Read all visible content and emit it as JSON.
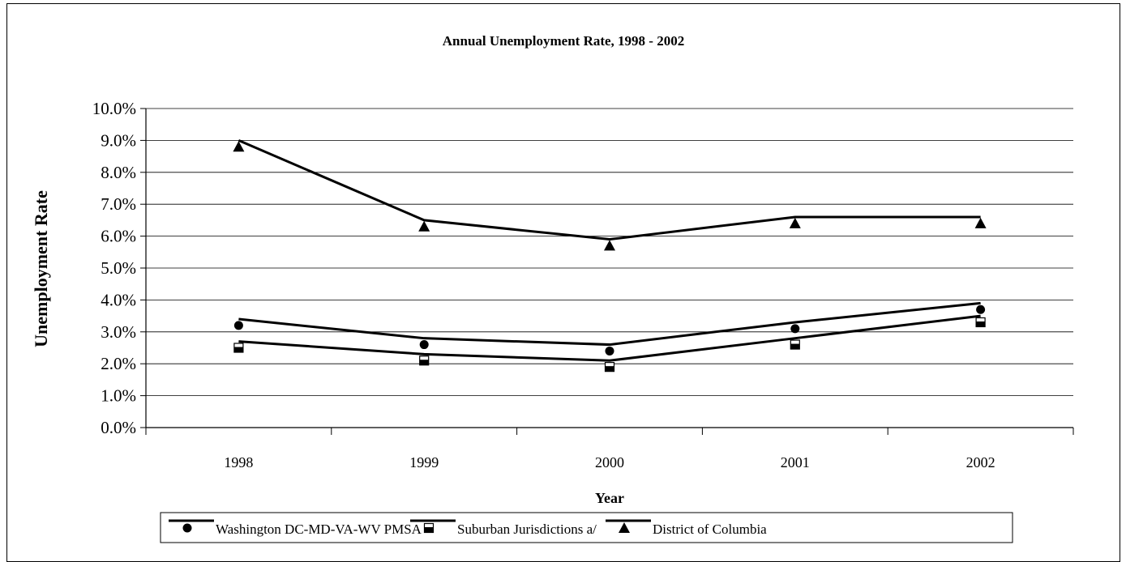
{
  "chart_data": {
    "type": "line",
    "title": "Annual Unemployment Rate, 1998 - 2002",
    "xlabel": "Year",
    "ylabel": "Unemployment Rate",
    "categories": [
      "1998",
      "1999",
      "2000",
      "2001",
      "2002"
    ],
    "ylim": [
      0,
      10
    ],
    "y_ticks": [
      "0.0%",
      "1.0%",
      "2.0%",
      "3.0%",
      "4.0%",
      "5.0%",
      "6.0%",
      "7.0%",
      "8.0%",
      "9.0%",
      "10.0%"
    ],
    "grid": true,
    "legend_position": "bottom",
    "series": [
      {
        "name": "Washington DC-MD-VA-WV PMSA",
        "marker": "circle",
        "line_values": [
          3.4,
          2.8,
          2.6,
          3.3,
          3.9
        ],
        "marker_values": [
          3.2,
          2.6,
          2.4,
          3.1,
          3.7
        ]
      },
      {
        "name": "Suburban Jurisdictions a/",
        "marker": "square",
        "line_values": [
          2.7,
          2.3,
          2.1,
          2.8,
          3.5
        ],
        "marker_values": [
          2.5,
          2.1,
          1.9,
          2.6,
          3.3
        ]
      },
      {
        "name": "District of Columbia",
        "marker": "triangle",
        "line_values": [
          9.0,
          6.5,
          5.9,
          6.6,
          6.6
        ],
        "marker_values": [
          8.8,
          6.3,
          5.7,
          6.4,
          6.4
        ]
      }
    ]
  }
}
